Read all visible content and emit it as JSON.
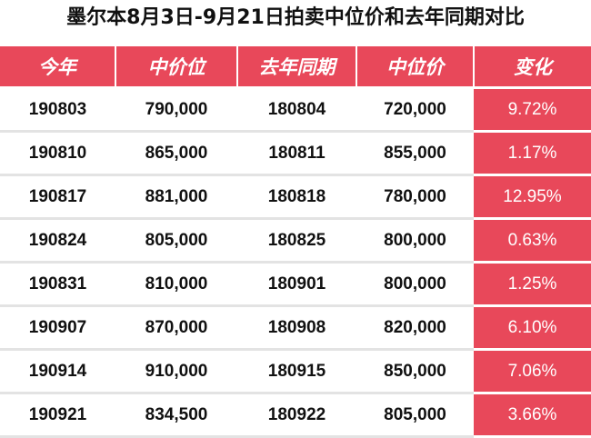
{
  "title": "墨尔本8月3日-9月21日拍卖中位价和去年同期对比",
  "colors": {
    "accent": "#e8485a",
    "header_text": "#ffffff",
    "row_divider": "#e3e3e3"
  },
  "chart_data": {
    "type": "table",
    "title": "墨尔本8月3日-9月21日拍卖中位价和去年同期对比",
    "columns": [
      "今年",
      "中价位",
      "去年同期",
      "中位价",
      "变化"
    ],
    "rows": [
      [
        "190803",
        "790,000",
        "180804",
        "720,000",
        "9.72%"
      ],
      [
        "190810",
        "865,000",
        "180811",
        "855,000",
        "1.17%"
      ],
      [
        "190817",
        "881,000",
        "180818",
        "780,000",
        "12.95%"
      ],
      [
        "190824",
        "805,000",
        "180825",
        "800,000",
        "0.63%"
      ],
      [
        "190831",
        "810,000",
        "180901",
        "800,000",
        "1.25%"
      ],
      [
        "190907",
        "870,000",
        "180908",
        "820,000",
        "6.10%"
      ],
      [
        "190914",
        "910,000",
        "180915",
        "850,000",
        "7.06%"
      ],
      [
        "190921",
        "834,500",
        "180922",
        "805,000",
        "3.66%"
      ]
    ]
  }
}
